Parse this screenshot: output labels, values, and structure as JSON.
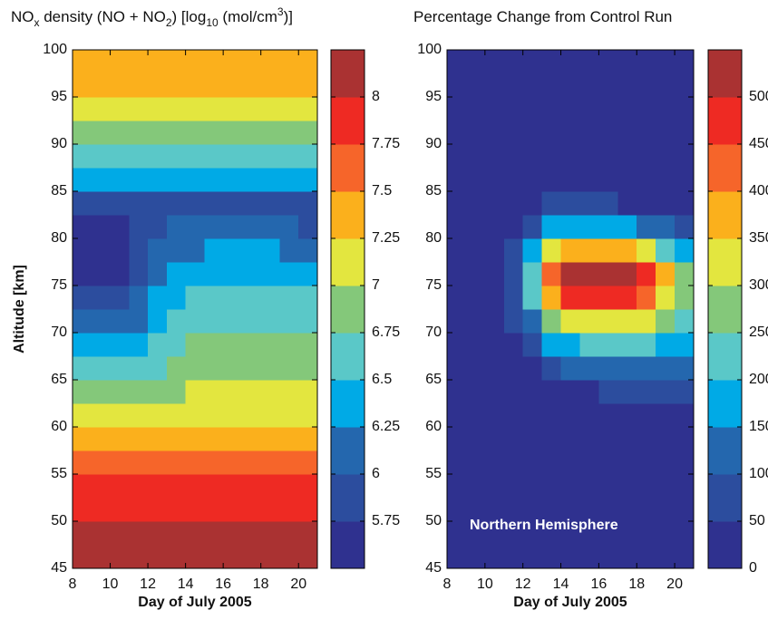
{
  "chart_data": [
    {
      "type": "contour",
      "title": [
        "NO",
        "x",
        " density (NO + NO",
        "2",
        ") [log",
        "10",
        " (mol/cm",
        "3",
        ")]"
      ],
      "xlabel": "Day of July 2005",
      "ylabel": "Altitude [km]",
      "x": [
        8.5,
        9.5,
        10.5,
        11.5,
        12.5,
        13.5,
        14.5,
        15.5,
        16.5,
        17.5,
        18.5,
        19.5,
        20.5
      ],
      "y": [
        46.25,
        48.75,
        51.25,
        53.75,
        56.25,
        58.75,
        61.25,
        63.75,
        66.25,
        68.75,
        71.25,
        73.75,
        76.25,
        78.75,
        81.25,
        83.75,
        86.25,
        88.75,
        91.25,
        93.75,
        96.25,
        98.75
      ],
      "z": [
        [
          8.1,
          8.1,
          8.1,
          8.1,
          8.1,
          8.1,
          8.1,
          8.1,
          8.1,
          8.1,
          8.1,
          8.1,
          8.1
        ],
        [
          8.1,
          8.1,
          8.1,
          8.1,
          8.1,
          8.1,
          8.1,
          8.1,
          8.1,
          8.1,
          8.1,
          8.1,
          8.1
        ],
        [
          7.9,
          7.9,
          7.9,
          7.9,
          7.9,
          7.9,
          7.9,
          7.9,
          7.9,
          7.9,
          7.9,
          7.9,
          7.9
        ],
        [
          7.85,
          7.85,
          7.85,
          7.85,
          7.85,
          7.85,
          7.85,
          7.85,
          7.85,
          7.85,
          7.85,
          7.85,
          7.85
        ],
        [
          7.6,
          7.6,
          7.6,
          7.6,
          7.6,
          7.6,
          7.6,
          7.6,
          7.6,
          7.6,
          7.6,
          7.6,
          7.6
        ],
        [
          7.4,
          7.4,
          7.4,
          7.4,
          7.4,
          7.4,
          7.4,
          7.4,
          7.4,
          7.4,
          7.4,
          7.4,
          7.4
        ],
        [
          7.1,
          7.1,
          7.1,
          7.1,
          7.1,
          7.1,
          7.1,
          7.1,
          7.1,
          7.1,
          7.1,
          7.1,
          7.1
        ],
        [
          6.85,
          6.85,
          6.85,
          6.85,
          6.85,
          6.95,
          7.05,
          7.05,
          7.05,
          7.05,
          7.05,
          7.05,
          7.05
        ],
        [
          6.6,
          6.6,
          6.6,
          6.6,
          6.7,
          6.8,
          6.85,
          6.85,
          6.85,
          6.85,
          6.85,
          6.85,
          6.85
        ],
        [
          6.35,
          6.35,
          6.35,
          6.4,
          6.6,
          6.7,
          6.85,
          6.85,
          6.85,
          6.85,
          6.85,
          6.85,
          6.8
        ],
        [
          6.1,
          6.1,
          6.1,
          6.2,
          6.45,
          6.55,
          6.65,
          6.65,
          6.7,
          6.7,
          6.7,
          6.65,
          6.65
        ],
        [
          5.9,
          5.9,
          5.9,
          6.0,
          6.3,
          6.4,
          6.55,
          6.55,
          6.6,
          6.6,
          6.6,
          6.55,
          6.55
        ],
        [
          5.6,
          5.6,
          5.6,
          5.9,
          6.1,
          6.35,
          6.35,
          6.35,
          6.4,
          6.4,
          6.4,
          6.35,
          6.35
        ],
        [
          5.6,
          5.6,
          5.6,
          5.85,
          6.1,
          6.1,
          6.1,
          6.3,
          6.3,
          6.3,
          6.3,
          6.2,
          6.2
        ],
        [
          5.6,
          5.6,
          5.6,
          5.9,
          5.9,
          6.1,
          6.1,
          6.1,
          6.1,
          6.1,
          6.1,
          6.1,
          5.9
        ],
        [
          5.95,
          5.95,
          5.95,
          5.95,
          5.95,
          5.95,
          5.95,
          5.95,
          5.95,
          5.95,
          5.95,
          5.95,
          5.95
        ],
        [
          6.35,
          6.35,
          6.35,
          6.35,
          6.35,
          6.35,
          6.35,
          6.35,
          6.35,
          6.35,
          6.35,
          6.35,
          6.35
        ],
        [
          6.6,
          6.6,
          6.6,
          6.6,
          6.6,
          6.6,
          6.6,
          6.6,
          6.6,
          6.6,
          6.6,
          6.6,
          6.6
        ],
        [
          6.85,
          6.85,
          6.85,
          6.85,
          6.85,
          6.85,
          6.85,
          6.85,
          6.85,
          6.85,
          6.85,
          6.85,
          6.85
        ],
        [
          7.1,
          7.1,
          7.1,
          7.1,
          7.1,
          7.1,
          7.1,
          7.1,
          7.1,
          7.1,
          7.1,
          7.1,
          7.1
        ],
        [
          7.3,
          7.3,
          7.3,
          7.3,
          7.3,
          7.3,
          7.3,
          7.3,
          7.3,
          7.3,
          7.3,
          7.3,
          7.3
        ],
        [
          7.35,
          7.35,
          7.35,
          7.35,
          7.35,
          7.35,
          7.35,
          7.35,
          7.35,
          7.35,
          7.35,
          7.35,
          7.35
        ]
      ],
      "xlim": [
        8,
        21
      ],
      "ylim": [
        45,
        100
      ],
      "xticks": [
        8,
        10,
        12,
        14,
        16,
        18,
        20
      ],
      "yticks": [
        45,
        50,
        55,
        60,
        65,
        70,
        75,
        80,
        85,
        90,
        95,
        100
      ],
      "levels": [
        5.5,
        5.75,
        6,
        6.25,
        6.5,
        6.75,
        7,
        7.25,
        7.5,
        7.75,
        8,
        8.25
      ],
      "colors": [
        "#2f318f",
        "#2c4d9e",
        "#2467ae",
        "#00aae6",
        "#5ac8c8",
        "#84c87a",
        "#e3e63f",
        "#fbb01c",
        "#f6652a",
        "#ee2a23",
        "#aa3232"
      ],
      "cticks": [
        5.75,
        6,
        6.25,
        6.5,
        6.75,
        7,
        7.25,
        7.5,
        7.75,
        8
      ]
    },
    {
      "type": "contour",
      "title": "Percentage Change from Control Run",
      "xlabel": "Day of July 2005",
      "annotation": "Northern Hemisphere",
      "x": [
        8.5,
        9.5,
        10.5,
        11.5,
        12.5,
        13.5,
        14.5,
        15.5,
        16.5,
        17.5,
        18.5,
        19.5,
        20.5
      ],
      "y": [
        46.25,
        48.75,
        51.25,
        53.75,
        56.25,
        58.75,
        61.25,
        63.75,
        66.25,
        68.75,
        71.25,
        73.75,
        76.25,
        78.75,
        81.25,
        83.75,
        86.25,
        88.75,
        91.25,
        93.75,
        96.25,
        98.75
      ],
      "z": [
        [
          0,
          0,
          0,
          0,
          0,
          0,
          0,
          0,
          0,
          0,
          0,
          0,
          0
        ],
        [
          0,
          0,
          0,
          0,
          0,
          0,
          0,
          0,
          0,
          0,
          0,
          0,
          0
        ],
        [
          0,
          0,
          0,
          0,
          0,
          0,
          0,
          0,
          0,
          0,
          0,
          0,
          0
        ],
        [
          0,
          0,
          0,
          0,
          0,
          0,
          0,
          0,
          0,
          0,
          0,
          0,
          0
        ],
        [
          0,
          0,
          0,
          0,
          0,
          0,
          0,
          0,
          0,
          0,
          0,
          0,
          0
        ],
        [
          0,
          0,
          0,
          0,
          0,
          0,
          0,
          0,
          0,
          0,
          0,
          0,
          0
        ],
        [
          0,
          0,
          0,
          0,
          0,
          0,
          0,
          0,
          0,
          0,
          0,
          0,
          0
        ],
        [
          0,
          0,
          0,
          0,
          0,
          20,
          40,
          45,
          50,
          55,
          55,
          55,
          50
        ],
        [
          0,
          0,
          0,
          0,
          30,
          80,
          110,
          120,
          130,
          130,
          130,
          120,
          100
        ],
        [
          0,
          0,
          0,
          20,
          70,
          150,
          190,
          200,
          210,
          210,
          200,
          180,
          150
        ],
        [
          0,
          0,
          0,
          50,
          130,
          260,
          320,
          330,
          340,
          340,
          310,
          260,
          200
        ],
        [
          0,
          0,
          0,
          80,
          200,
          380,
          470,
          480,
          490,
          480,
          430,
          340,
          260
        ],
        [
          0,
          0,
          0,
          90,
          220,
          420,
          520,
          520,
          520,
          530,
          470,
          380,
          290
        ],
        [
          0,
          0,
          0,
          70,
          160,
          300,
          360,
          370,
          370,
          360,
          320,
          240,
          170
        ],
        [
          0,
          0,
          0,
          40,
          90,
          160,
          180,
          180,
          170,
          160,
          140,
          110,
          80
        ],
        [
          0,
          0,
          0,
          10,
          30,
          60,
          70,
          60,
          50,
          40,
          30,
          20,
          10
        ],
        [
          0,
          0,
          0,
          0,
          0,
          0,
          0,
          0,
          0,
          0,
          0,
          0,
          0
        ],
        [
          0,
          0,
          0,
          0,
          0,
          0,
          0,
          0,
          0,
          0,
          0,
          0,
          0
        ],
        [
          0,
          0,
          0,
          0,
          0,
          0,
          0,
          0,
          0,
          0,
          0,
          0,
          0
        ],
        [
          0,
          0,
          0,
          0,
          0,
          0,
          0,
          0,
          0,
          0,
          0,
          0,
          0
        ],
        [
          0,
          0,
          0,
          0,
          0,
          0,
          0,
          0,
          0,
          0,
          0,
          0,
          0
        ],
        [
          0,
          0,
          0,
          0,
          0,
          0,
          0,
          0,
          0,
          0,
          0,
          0,
          0
        ]
      ],
      "xlim": [
        8,
        21
      ],
      "ylim": [
        45,
        100
      ],
      "xticks": [
        8,
        10,
        12,
        14,
        16,
        18,
        20
      ],
      "yticks": [
        45,
        50,
        55,
        60,
        65,
        70,
        75,
        80,
        85,
        90,
        95,
        100
      ],
      "levels": [
        0,
        50,
        100,
        150,
        200,
        250,
        300,
        350,
        400,
        450,
        500,
        550
      ],
      "colors": [
        "#2f318f",
        "#2c4d9e",
        "#2467ae",
        "#00aae6",
        "#5ac8c8",
        "#84c87a",
        "#e3e63f",
        "#fbb01c",
        "#f6652a",
        "#ee2a23",
        "#aa3232"
      ],
      "cticks": [
        0,
        50,
        100,
        150,
        200,
        250,
        300,
        350,
        400,
        450,
        500
      ]
    }
  ]
}
